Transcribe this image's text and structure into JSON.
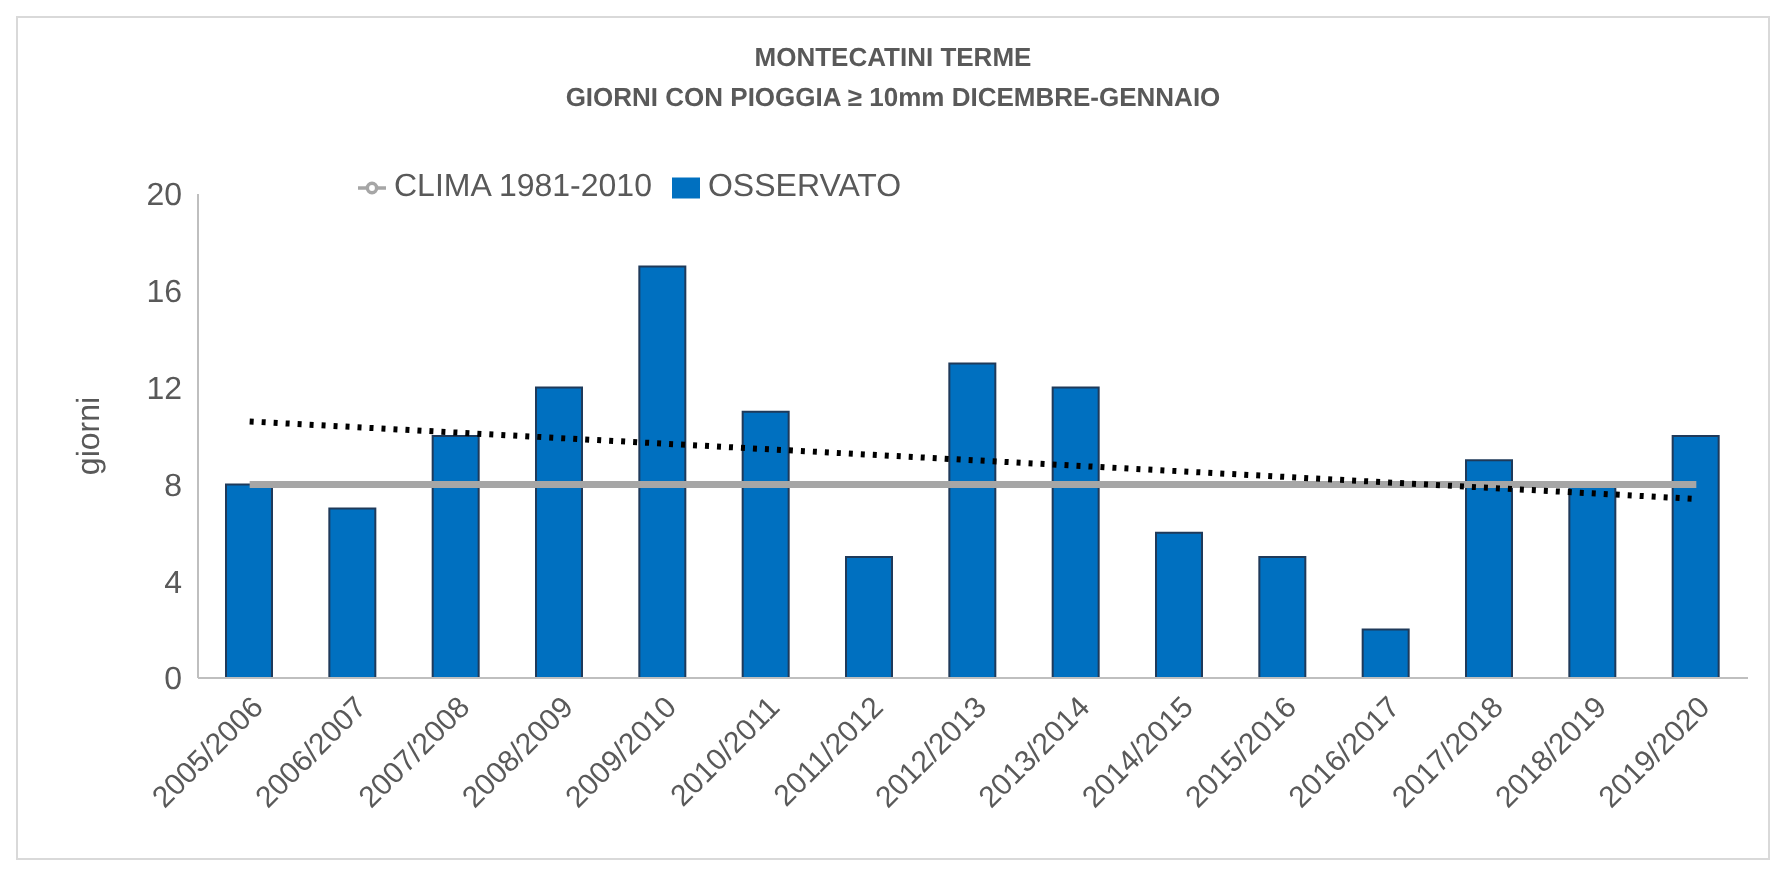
{
  "chart_data": {
    "type": "bar",
    "title": "MONTECATINI TERME",
    "subtitle": "GIORNI CON PIOGGIA  ≥ 10mm DICEMBRE-GENNAIO",
    "ylabel": "giorni",
    "categories": [
      "2005/2006",
      "2006/2007",
      "2007/2008",
      "2008/2009",
      "2009/2010",
      "2010/2011",
      "2011/2012",
      "2012/2013",
      "2013/2014",
      "2014/2015",
      "2015/2016",
      "2016/2017",
      "2017/2018",
      "2018/2019",
      "2019/2020"
    ],
    "series": [
      {
        "name": "OSSERVATO",
        "color": "#0070c0",
        "values": [
          8,
          7,
          10,
          12,
          17,
          11,
          5,
          13,
          12,
          6,
          5,
          2,
          9,
          8,
          10
        ]
      },
      {
        "name": "CLIMA 1981-2010",
        "type": "line",
        "color": "#a6a6a6",
        "values": [
          8,
          8,
          8,
          8,
          8,
          8,
          8,
          8,
          8,
          8,
          8,
          8,
          8,
          8,
          8
        ]
      },
      {
        "type": "line",
        "color": "#000000",
        "line_style": "dotted",
        "x": [
          "2005/2006",
          "2019/2020"
        ],
        "values": [
          10.6,
          7.4
        ]
      }
    ],
    "ylim": [
      0,
      20
    ],
    "yticks": [
      0,
      4,
      8,
      12,
      16,
      20
    ],
    "grid": false,
    "legend": "top left"
  }
}
